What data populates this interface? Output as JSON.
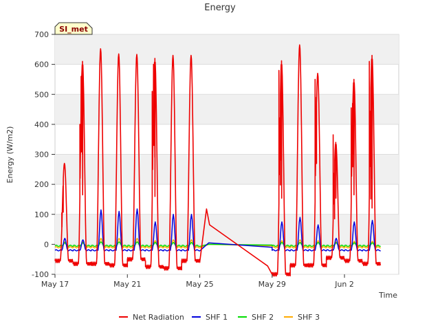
{
  "chart_data": {
    "type": "line",
    "title": "Energy",
    "badge": "SI_met",
    "xlabel": "Time",
    "ylabel": "Energy (W/m2)",
    "xlim": [
      "2016-05-17",
      "2016-06-05"
    ],
    "ylim": [
      -100,
      700
    ],
    "x_ticks": [
      {
        "date": "2016-05-17",
        "label": "May 17"
      },
      {
        "date": "2016-05-21",
        "label": "May 21"
      },
      {
        "date": "2016-05-25",
        "label": "May 25"
      },
      {
        "date": "2016-05-29",
        "label": "May 29"
      },
      {
        "date": "2016-06-02",
        "label": "Jun 2"
      }
    ],
    "y_ticks": [
      -100,
      0,
      100,
      200,
      300,
      400,
      500,
      600,
      700
    ],
    "grid": true,
    "legend_position": "bottom",
    "series": [
      {
        "name": "Net Radiation",
        "color": "#ee0000",
        "days": [
          {
            "date": "2016-05-17",
            "peak": 270,
            "night": -55,
            "spikes": [
              105,
              195
            ]
          },
          {
            "date": "2016-05-18",
            "peak": 610,
            "night": -65,
            "spikes": [
              400,
              560,
              300
            ]
          },
          {
            "date": "2016-05-19",
            "peak": 652,
            "night": -65,
            "spikes": []
          },
          {
            "date": "2016-05-20",
            "peak": 635,
            "night": -70,
            "spikes": []
          },
          {
            "date": "2016-05-21",
            "peak": 633,
            "night": -50,
            "spikes": []
          },
          {
            "date": "2016-05-22",
            "peak": 620,
            "night": -75,
            "spikes": [
              510,
              600,
              290
            ]
          },
          {
            "date": "2016-05-23",
            "peak": 630,
            "night": -80,
            "spikes": []
          },
          {
            "date": "2016-05-24",
            "peak": 630,
            "night": -55,
            "spikes": []
          }
        ],
        "gap_segment": [
          [
            "2016-05-25T09:00",
            118
          ],
          [
            "2016-05-25T13:00",
            65
          ],
          [
            "2016-05-28T18:00",
            -72
          ]
        ],
        "days_after_gap": [
          {
            "date": "2016-05-29",
            "peak": 612,
            "night": -100,
            "spikes": [
              580,
              360,
              280
            ]
          },
          {
            "date": "2016-05-30",
            "peak": 665,
            "night": -70,
            "spikes": []
          },
          {
            "date": "2016-05-31",
            "peak": 570,
            "night": -70,
            "spikes": [
              550,
              490
            ]
          },
          {
            "date": "2016-06-01",
            "peak": 340,
            "night": -45,
            "spikes": [
              365,
              155,
              280
            ]
          },
          {
            "date": "2016-06-02",
            "peak": 550,
            "night": -55,
            "spikes": [
              455,
              470,
              300
            ]
          },
          {
            "date": "2016-06-03",
            "peak": 630,
            "night": -65,
            "spikes": [
              610,
              275,
              220
            ]
          }
        ]
      },
      {
        "name": "SHF 1",
        "color": "#0000dd",
        "day_peaks": [
          20,
          15,
          115,
          110,
          118,
          75,
          100,
          100,
          75,
          90,
          65,
          20,
          75,
          80
        ],
        "night_min": -20
      },
      {
        "name": "SHF 2",
        "color": "#00dd00",
        "day_peaks": [
          5,
          5,
          8,
          8,
          8,
          6,
          6,
          6,
          6,
          6,
          6,
          5,
          5,
          5
        ],
        "night_min": -5
      },
      {
        "name": "SHF 3",
        "color": "#ffaa00",
        "day_peaks": [
          8,
          8,
          20,
          20,
          20,
          12,
          15,
          15,
          12,
          15,
          12,
          8,
          10,
          10
        ],
        "night_min": -10
      }
    ]
  }
}
